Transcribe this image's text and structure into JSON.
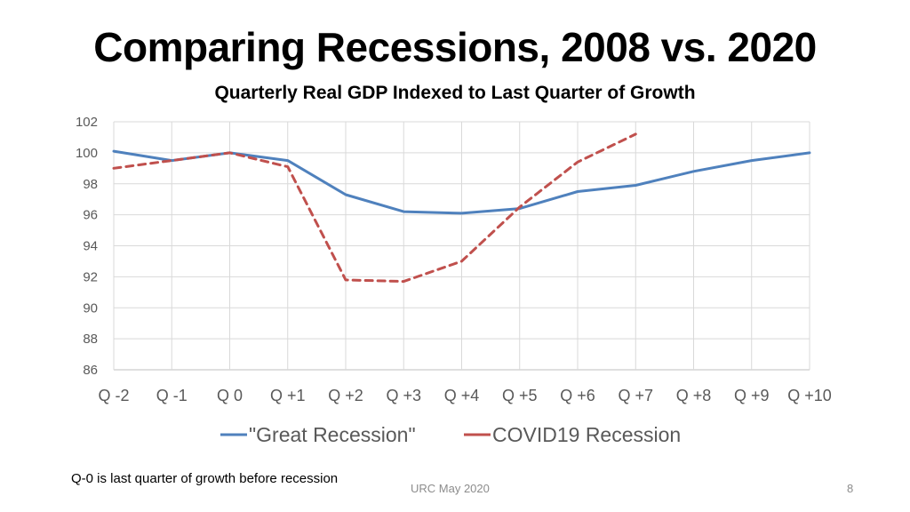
{
  "slide": {
    "title": "Comparing Recessions, 2008 vs. 2020",
    "footnote": "Q-0 is last quarter of growth before recession",
    "footer": "URC May 2020",
    "page_number": "8"
  },
  "chart_data": {
    "type": "line",
    "title": "Quarterly Real GDP Indexed to Last Quarter of Growth",
    "xlabel": "",
    "ylabel": "",
    "categories": [
      "Q -2",
      "Q -1",
      "Q 0",
      "Q +1",
      "Q +2",
      "Q +3",
      "Q +4",
      "Q +5",
      "Q +6",
      "Q +7",
      "Q +8",
      "Q +9",
      "Q +10"
    ],
    "ylim": [
      86,
      102
    ],
    "yticks": [
      86,
      88,
      90,
      92,
      94,
      96,
      98,
      100,
      102
    ],
    "grid": true,
    "legend_position": "bottom",
    "series": [
      {
        "name": "\"Great Recession\"",
        "color": "#4f81bd",
        "dash": "solid",
        "values": [
          100.1,
          99.5,
          100.0,
          99.5,
          97.3,
          96.2,
          96.1,
          96.4,
          97.5,
          97.9,
          98.8,
          99.5,
          100.0
        ]
      },
      {
        "name": "COVID19 Recession",
        "color": "#c0504d",
        "dash": "dashed",
        "values": [
          99.0,
          99.5,
          100.0,
          99.1,
          91.8,
          91.7,
          93.0,
          96.5,
          99.4,
          101.2,
          null,
          null,
          null
        ]
      }
    ]
  }
}
